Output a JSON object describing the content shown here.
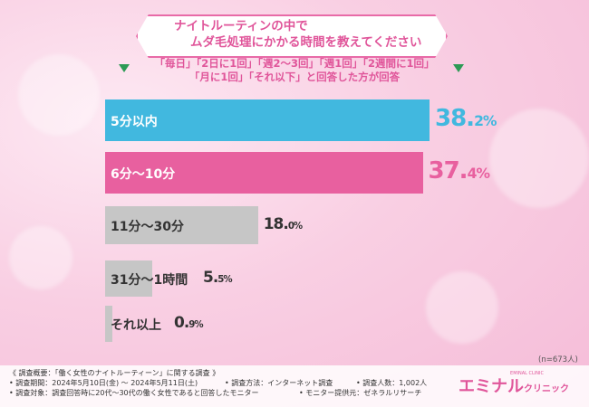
{
  "title": {
    "line1": "ナイトルーティンの中で",
    "line2": "ムダ毛処理にかかる時間を教えてください"
  },
  "subtitle": {
    "line1": "「毎日」「2日に1回」「週2～3回」「週1回」「2週間に1回」",
    "line2": "「月に1回」「それ以下」と回答した方が回答"
  },
  "colors": {
    "bar_blue": "#41b8df",
    "bar_pink": "#e8609f",
    "bar_gray": "#c6c6c6",
    "title_pink": "#e0559a",
    "triangle_green": "#2c9a55"
  },
  "chart_data": {
    "type": "bar",
    "orientation": "horizontal",
    "categories": [
      "5分以内",
      "6分～10分",
      "11分～30分",
      "31分～1時間",
      "それ以上"
    ],
    "values": [
      38.2,
      37.4,
      18.0,
      5.5,
      0.9
    ],
    "value_labels": [
      {
        "num": "38.",
        "dec": "2%"
      },
      {
        "num": "37.",
        "dec": "4%"
      },
      {
        "num": "18.",
        "dec": "0%"
      },
      {
        "num": "5.",
        "dec": "5%"
      },
      {
        "num": "0.",
        "dec": "9%"
      }
    ],
    "n_label": "(n=673人)"
  },
  "footer": {
    "heading": "《 調査概要：「働く女性のナイトルーティーン」に関する調査 》",
    "period": "• 調査期間：2024年5月10日(金) ～ 2024年5月11日(土)",
    "method": "• 調査方法：インターネット調査",
    "count": "• 調査人数：1,002人",
    "target": "• 調査対象：調査回答時に20代～30代の働く女性であると回答したモニター",
    "provider": "• モニター提供元：ゼネラルリサーチ"
  },
  "logo": {
    "main": "エミナル",
    "sub": "クリニック",
    "tiny": "EMINAL CLINIC"
  }
}
